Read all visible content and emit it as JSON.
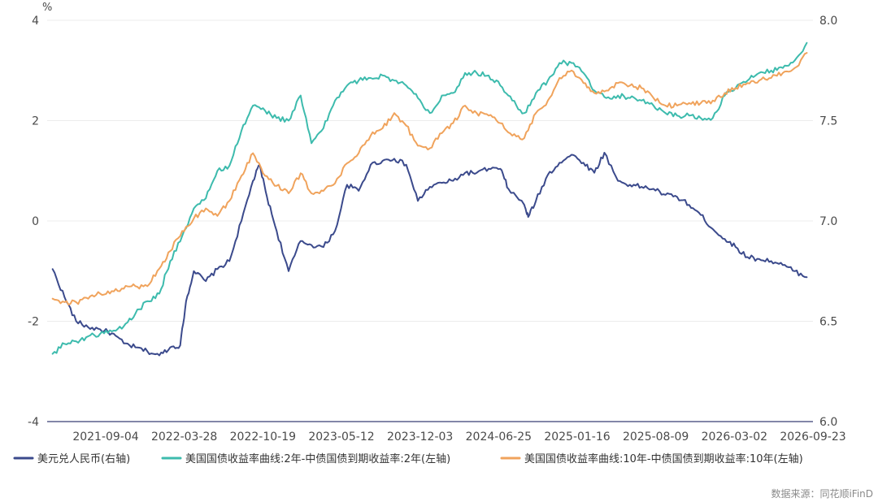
{
  "chart_data": {
    "type": "line",
    "left_axis_unit": "%",
    "left_ylim": [
      -4,
      4
    ],
    "left_yticks": [
      "4",
      "2",
      "0",
      "-2",
      "-4"
    ],
    "right_ylim": [
      6.0,
      8.0
    ],
    "right_yticks": [
      "8.0",
      "7.5",
      "7.0",
      "6.5",
      "6.0"
    ],
    "xtick_labels": [
      "2021-09-04",
      "2022-03-28",
      "2022-10-19",
      "2023-05-12",
      "2023-12-03",
      "2024-06-25",
      "2025-01-16",
      "2025-08-09",
      "2026-03-02",
      "2026-09-23"
    ],
    "x_range": [
      "2021-05",
      "2026-10"
    ],
    "grid": "horizontal",
    "legend_position": "bottom",
    "source": "数据来源：同花顺iFinD",
    "series": [
      {
        "name": "美元兑人民币(右轴)",
        "axis": "right",
        "color": "#3b4a8c",
        "points": [
          [
            "2021-05-15",
            6.76
          ],
          [
            "2021-06-15",
            6.62
          ],
          [
            "2021-07-15",
            6.5
          ],
          [
            "2021-08-15",
            6.47
          ],
          [
            "2021-09-15",
            6.46
          ],
          [
            "2021-10-15",
            6.44
          ],
          [
            "2021-11-15",
            6.39
          ],
          [
            "2021-12-15",
            6.37
          ],
          [
            "2022-01-15",
            6.35
          ],
          [
            "2022-02-15",
            6.33
          ],
          [
            "2022-03-15",
            6.37
          ],
          [
            "2022-04-10",
            6.38
          ],
          [
            "2022-04-25",
            6.6
          ],
          [
            "2022-05-15",
            6.75
          ],
          [
            "2022-06-15",
            6.7
          ],
          [
            "2022-07-15",
            6.76
          ],
          [
            "2022-08-15",
            6.8
          ],
          [
            "2022-09-15",
            7.0
          ],
          [
            "2022-10-15",
            7.2
          ],
          [
            "2022-11-01",
            7.28
          ],
          [
            "2022-11-20",
            7.12
          ],
          [
            "2022-12-15",
            6.95
          ],
          [
            "2023-01-15",
            6.75
          ],
          [
            "2023-02-15",
            6.9
          ],
          [
            "2023-03-15",
            6.88
          ],
          [
            "2023-04-15",
            6.87
          ],
          [
            "2023-05-15",
            6.95
          ],
          [
            "2023-06-15",
            7.18
          ],
          [
            "2023-07-15",
            7.15
          ],
          [
            "2023-08-15",
            7.28
          ],
          [
            "2023-09-15",
            7.3
          ],
          [
            "2023-10-15",
            7.31
          ],
          [
            "2023-11-15",
            7.28
          ],
          [
            "2023-12-15",
            7.1
          ],
          [
            "2024-01-15",
            7.17
          ],
          [
            "2024-02-15",
            7.19
          ],
          [
            "2024-03-15",
            7.2
          ],
          [
            "2024-04-15",
            7.24
          ],
          [
            "2024-05-15",
            7.24
          ],
          [
            "2024-06-15",
            7.26
          ],
          [
            "2024-07-15",
            7.26
          ],
          [
            "2024-08-05",
            7.16
          ],
          [
            "2024-09-15",
            7.08
          ],
          [
            "2024-09-25",
            7.02
          ],
          [
            "2024-10-15",
            7.1
          ],
          [
            "2024-11-15",
            7.23
          ],
          [
            "2024-12-15",
            7.29
          ],
          [
            "2025-01-15",
            7.33
          ],
          [
            "2025-02-15",
            7.29
          ],
          [
            "2025-03-15",
            7.24
          ],
          [
            "2025-04-10",
            7.34
          ],
          [
            "2025-05-15",
            7.2
          ],
          [
            "2025-06-15",
            7.18
          ],
          [
            "2025-07-15",
            7.17
          ],
          [
            "2025-08-15",
            7.16
          ],
          [
            "2025-09-15",
            7.13
          ],
          [
            "2025-10-15",
            7.12
          ],
          [
            "2025-11-15",
            7.08
          ],
          [
            "2025-12-15",
            7.03
          ],
          [
            "2026-01-15",
            6.96
          ],
          [
            "2026-02-15",
            6.91
          ],
          [
            "2026-03-15",
            6.87
          ],
          [
            "2026-04-15",
            6.82
          ],
          [
            "2026-05-15",
            6.81
          ],
          [
            "2026-06-15",
            6.8
          ],
          [
            "2026-07-15",
            6.78
          ],
          [
            "2026-08-15",
            6.75
          ],
          [
            "2026-09-15",
            6.72
          ]
        ]
      },
      {
        "name": "美国国债收益率曲线:2年-中债国债到期收益率:2年(左轴)",
        "axis": "left",
        "color": "#3dbbad",
        "points": [
          [
            "2021-05-15",
            -2.65
          ],
          [
            "2021-06-15",
            -2.45
          ],
          [
            "2021-07-15",
            -2.4
          ],
          [
            "2021-08-15",
            -2.3
          ],
          [
            "2021-09-15",
            -2.25
          ],
          [
            "2021-10-15",
            -2.2
          ],
          [
            "2021-11-15",
            -2.1
          ],
          [
            "2021-12-15",
            -1.85
          ],
          [
            "2022-01-15",
            -1.6
          ],
          [
            "2022-02-15",
            -1.45
          ],
          [
            "2022-03-15",
            -0.8
          ],
          [
            "2022-04-15",
            -0.3
          ],
          [
            "2022-05-15",
            0.25
          ],
          [
            "2022-06-15",
            0.45
          ],
          [
            "2022-07-15",
            1.0
          ],
          [
            "2022-08-15",
            1.1
          ],
          [
            "2022-09-15",
            1.8
          ],
          [
            "2022-10-15",
            2.3
          ],
          [
            "2022-11-15",
            2.2
          ],
          [
            "2022-12-15",
            2.05
          ],
          [
            "2023-01-15",
            2.0
          ],
          [
            "2023-02-15",
            2.5
          ],
          [
            "2023-03-15",
            1.55
          ],
          [
            "2023-04-15",
            1.85
          ],
          [
            "2023-05-15",
            2.4
          ],
          [
            "2023-06-15",
            2.7
          ],
          [
            "2023-07-15",
            2.8
          ],
          [
            "2023-08-15",
            2.85
          ],
          [
            "2023-09-15",
            2.9
          ],
          [
            "2023-10-15",
            2.8
          ],
          [
            "2023-11-15",
            2.7
          ],
          [
            "2023-12-15",
            2.45
          ],
          [
            "2024-01-15",
            2.15
          ],
          [
            "2024-02-15",
            2.5
          ],
          [
            "2024-03-15",
            2.55
          ],
          [
            "2024-04-15",
            2.95
          ],
          [
            "2024-05-15",
            2.95
          ],
          [
            "2024-06-15",
            2.9
          ],
          [
            "2024-07-15",
            2.7
          ],
          [
            "2024-08-15",
            2.4
          ],
          [
            "2024-09-15",
            2.15
          ],
          [
            "2024-10-15",
            2.55
          ],
          [
            "2024-11-15",
            2.8
          ],
          [
            "2024-12-15",
            3.15
          ],
          [
            "2025-01-15",
            3.15
          ],
          [
            "2025-02-15",
            2.95
          ],
          [
            "2025-03-15",
            2.6
          ],
          [
            "2025-04-15",
            2.45
          ],
          [
            "2025-05-15",
            2.5
          ],
          [
            "2025-06-15",
            2.45
          ],
          [
            "2025-07-15",
            2.4
          ],
          [
            "2025-08-15",
            2.3
          ],
          [
            "2025-09-15",
            2.15
          ],
          [
            "2025-10-15",
            2.1
          ],
          [
            "2025-11-15",
            2.1
          ],
          [
            "2025-12-15",
            2.05
          ],
          [
            "2026-01-15",
            2.05
          ],
          [
            "2026-02-15",
            2.5
          ],
          [
            "2026-03-15",
            2.65
          ],
          [
            "2026-04-15",
            2.8
          ],
          [
            "2026-05-15",
            2.95
          ],
          [
            "2026-06-15",
            3.0
          ],
          [
            "2026-07-15",
            3.05
          ],
          [
            "2026-08-15",
            3.2
          ],
          [
            "2026-09-15",
            3.55
          ]
        ]
      },
      {
        "name": "美国国债收益率曲线:10年-中债国债到期收益率:10年(左轴)",
        "axis": "left",
        "color": "#f0a35c",
        "points": [
          [
            "2021-05-15",
            -1.55
          ],
          [
            "2021-06-15",
            -1.62
          ],
          [
            "2021-07-15",
            -1.62
          ],
          [
            "2021-08-15",
            -1.55
          ],
          [
            "2021-09-15",
            -1.45
          ],
          [
            "2021-10-15",
            -1.4
          ],
          [
            "2021-11-15",
            -1.35
          ],
          [
            "2021-12-15",
            -1.3
          ],
          [
            "2022-01-15",
            -1.3
          ],
          [
            "2022-02-15",
            -0.95
          ],
          [
            "2022-03-15",
            -0.6
          ],
          [
            "2022-04-15",
            -0.2
          ],
          [
            "2022-05-15",
            0.05
          ],
          [
            "2022-06-15",
            0.25
          ],
          [
            "2022-07-15",
            0.1
          ],
          [
            "2022-08-15",
            0.4
          ],
          [
            "2022-09-15",
            0.9
          ],
          [
            "2022-10-15",
            1.35
          ],
          [
            "2022-11-15",
            0.9
          ],
          [
            "2022-12-15",
            0.7
          ],
          [
            "2023-01-15",
            0.55
          ],
          [
            "2023-02-15",
            0.95
          ],
          [
            "2023-03-15",
            0.55
          ],
          [
            "2023-04-15",
            0.6
          ],
          [
            "2023-05-15",
            0.75
          ],
          [
            "2023-06-15",
            1.15
          ],
          [
            "2023-07-15",
            1.35
          ],
          [
            "2023-08-15",
            1.7
          ],
          [
            "2023-09-15",
            1.85
          ],
          [
            "2023-10-15",
            2.15
          ],
          [
            "2023-11-15",
            1.9
          ],
          [
            "2023-12-15",
            1.5
          ],
          [
            "2024-01-15",
            1.45
          ],
          [
            "2024-02-15",
            1.75
          ],
          [
            "2024-03-15",
            1.95
          ],
          [
            "2024-04-15",
            2.3
          ],
          [
            "2024-05-15",
            2.15
          ],
          [
            "2024-06-15",
            2.1
          ],
          [
            "2024-07-15",
            1.95
          ],
          [
            "2024-08-15",
            1.7
          ],
          [
            "2024-09-15",
            1.65
          ],
          [
            "2024-10-15",
            2.15
          ],
          [
            "2024-11-15",
            2.4
          ],
          [
            "2024-12-15",
            2.85
          ],
          [
            "2025-01-15",
            3.0
          ],
          [
            "2025-02-15",
            2.75
          ],
          [
            "2025-03-15",
            2.55
          ],
          [
            "2025-04-15",
            2.6
          ],
          [
            "2025-05-15",
            2.75
          ],
          [
            "2025-06-15",
            2.7
          ],
          [
            "2025-07-15",
            2.65
          ],
          [
            "2025-08-15",
            2.45
          ],
          [
            "2025-09-15",
            2.3
          ],
          [
            "2025-10-15",
            2.3
          ],
          [
            "2025-11-15",
            2.35
          ],
          [
            "2025-12-15",
            2.35
          ],
          [
            "2026-01-15",
            2.4
          ],
          [
            "2026-02-15",
            2.55
          ],
          [
            "2026-03-15",
            2.65
          ],
          [
            "2026-04-15",
            2.75
          ],
          [
            "2026-05-15",
            2.8
          ],
          [
            "2026-06-15",
            2.85
          ],
          [
            "2026-07-15",
            2.95
          ],
          [
            "2026-08-15",
            3.05
          ],
          [
            "2026-09-15",
            3.35
          ]
        ]
      }
    ]
  }
}
